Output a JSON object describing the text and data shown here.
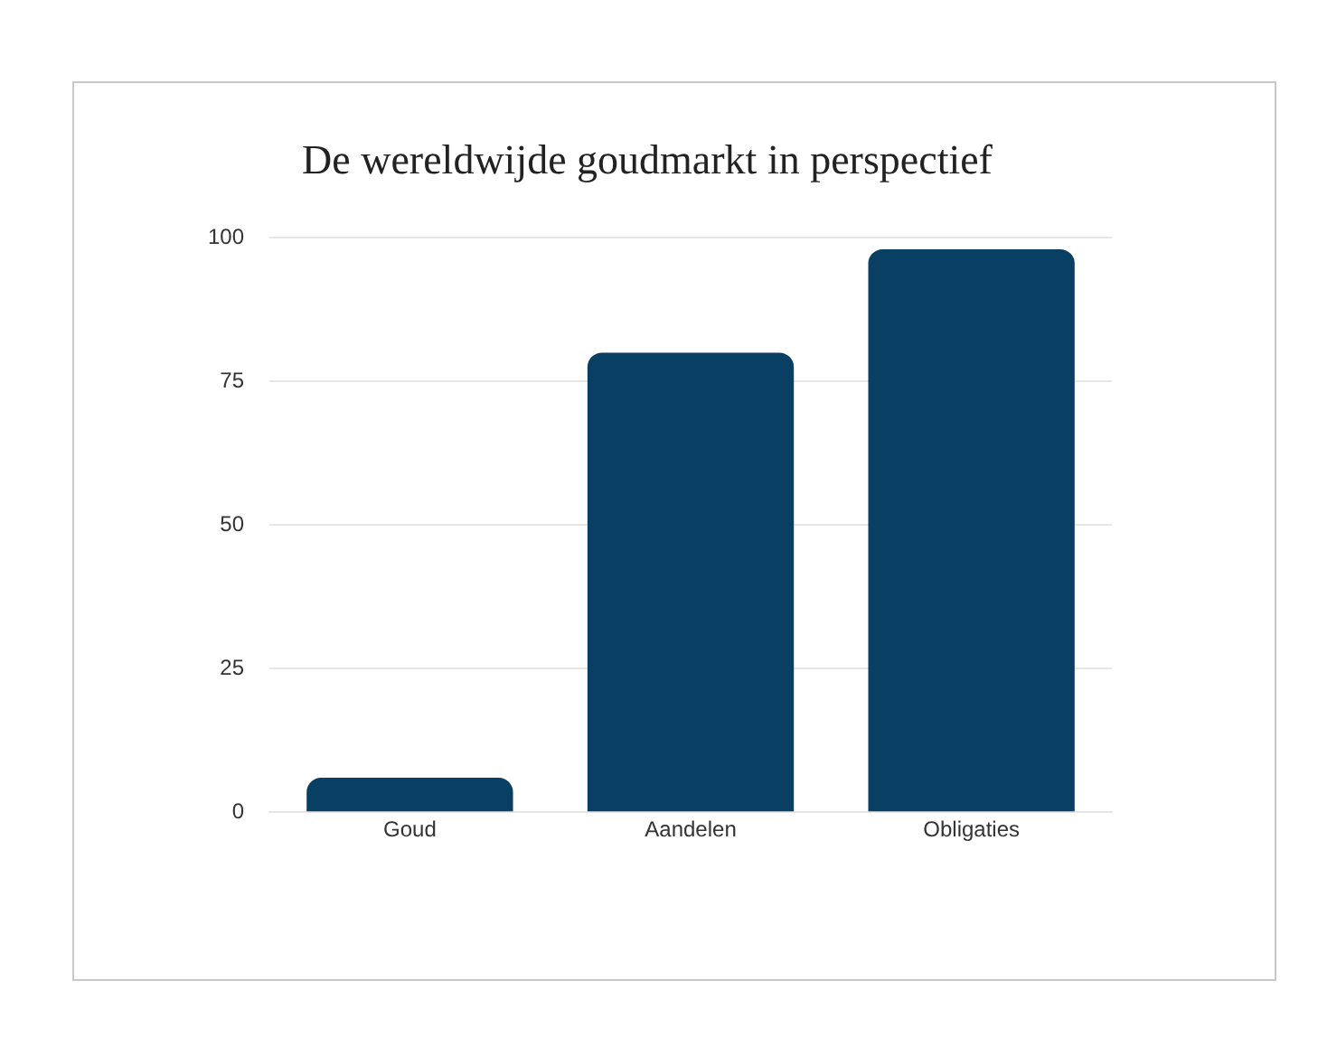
{
  "chart_data": {
    "type": "bar",
    "title": "De wereldwijde goudmarkt in perspectief",
    "categories": [
      "Goud",
      "Aandelen",
      "Obligaties"
    ],
    "values": [
      6,
      80,
      98
    ],
    "color": "#083f63",
    "ylim": [
      0,
      100
    ],
    "yticks": [
      0,
      25,
      50,
      75,
      100
    ],
    "grid": "y",
    "legend": false
  }
}
